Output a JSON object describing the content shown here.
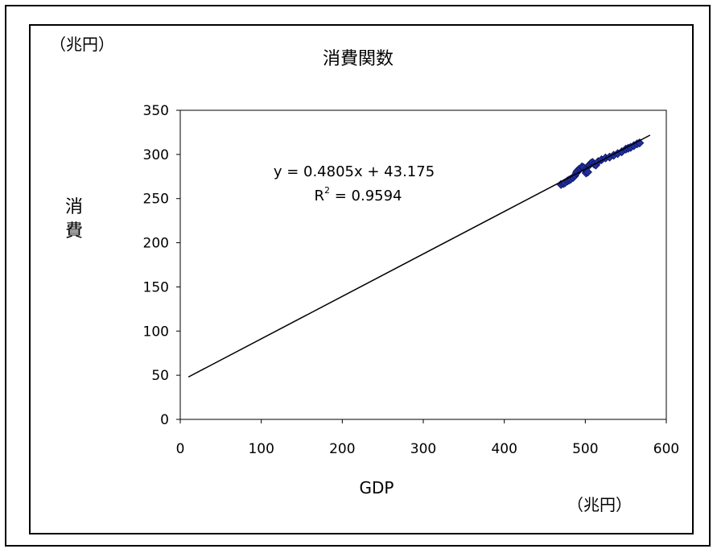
{
  "chart_data": {
    "type": "scatter",
    "title": "消費関数",
    "ylabel": "消\n費",
    "xlabel": "GDP",
    "y_unit": "（兆円）",
    "x_unit": "（兆円）",
    "xlim": [
      0,
      600
    ],
    "ylim": [
      0,
      350
    ],
    "x_ticks": [
      0,
      100,
      200,
      300,
      400,
      500,
      600
    ],
    "y_ticks": [
      0,
      50,
      100,
      150,
      200,
      250,
      300,
      350
    ],
    "grid": false,
    "legend": "none",
    "series": [
      {
        "values_xy": [
          [
            470,
            266
          ],
          [
            473,
            267
          ],
          [
            475,
            268
          ],
          [
            478,
            270
          ],
          [
            480,
            271
          ],
          [
            482,
            272
          ],
          [
            485,
            274
          ],
          [
            487,
            276
          ],
          [
            489,
            279
          ],
          [
            490,
            281
          ],
          [
            492,
            283
          ],
          [
            494,
            284
          ],
          [
            496,
            286
          ],
          [
            498,
            285
          ],
          [
            500,
            282
          ],
          [
            501,
            279
          ],
          [
            503,
            280
          ],
          [
            505,
            288
          ],
          [
            507,
            290
          ],
          [
            509,
            291
          ],
          [
            511,
            289
          ],
          [
            513,
            288
          ],
          [
            516,
            292
          ],
          [
            520,
            294
          ],
          [
            525,
            296
          ],
          [
            530,
            297
          ],
          [
            535,
            299
          ],
          [
            540,
            301
          ],
          [
            545,
            303
          ],
          [
            550,
            306
          ],
          [
            553,
            307
          ],
          [
            556,
            308
          ],
          [
            560,
            310
          ],
          [
            564,
            312
          ],
          [
            567,
            313
          ]
        ]
      }
    ],
    "trendline": {
      "slope": 0.4805,
      "intercept": 43.175,
      "x_range": [
        10,
        580
      ],
      "equation": "y = 0.4805x + 43.175",
      "r2_prefix": "R",
      "r2_sup": "2",
      "r2_value": " = 0.9594"
    },
    "colors": {
      "marker": "#1f2f9a",
      "marker_edge": "#0d1566",
      "trendline": "#000000"
    }
  }
}
